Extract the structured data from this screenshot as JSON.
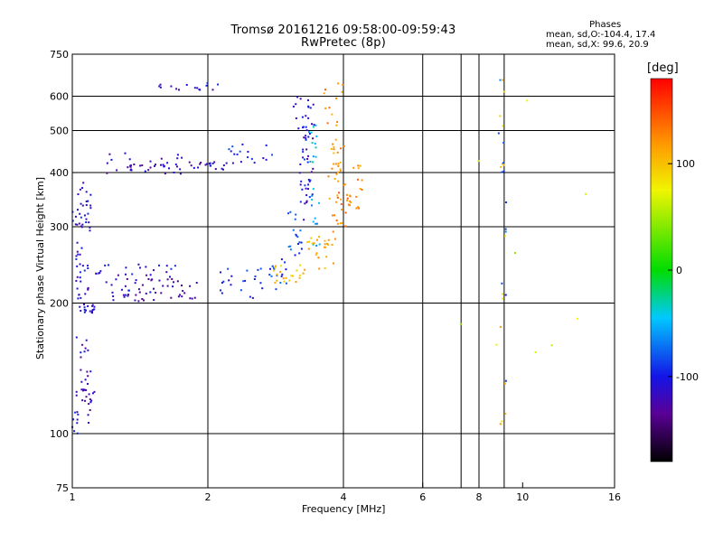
{
  "title": {
    "line1": "Tromsø 20161216 09:58:00-09:59:43",
    "line2": "RwPretec (8p)"
  },
  "stats": {
    "heading": "Phases",
    "line_o": "mean, sd,O:-104.4, 17.4",
    "line_x": "mean, sd,X: 99.6, 20.9"
  },
  "colorbar": {
    "unit_label": "[deg]",
    "min": -180,
    "max": 180,
    "ticks": [
      {
        "value": 100,
        "label": "100"
      },
      {
        "value": 0,
        "label": "0"
      },
      {
        "value": -100,
        "label": "-100"
      }
    ]
  },
  "chart_data": {
    "type": "scatter",
    "xlabel": "Frequency [MHz]",
    "ylabel": "Stationary phase Virtual Height [km]",
    "xscale": "log",
    "yscale": "log",
    "xlim": [
      1,
      16
    ],
    "ylim": [
      75,
      750
    ],
    "grid": true,
    "xticks": [
      {
        "value": 1,
        "label": "1"
      },
      {
        "value": 2,
        "label": "2"
      },
      {
        "value": 4,
        "label": "4"
      },
      {
        "value": 6,
        "label": "6"
      },
      {
        "value": 8,
        "label": "8"
      },
      {
        "value": 10,
        "label": "10"
      },
      {
        "value": 16,
        "label": "16"
      }
    ],
    "yticks": [
      {
        "value": 75,
        "label": "75"
      },
      {
        "value": 100,
        "label": "100"
      },
      {
        "value": 200,
        "label": "200"
      },
      {
        "value": 300,
        "label": "300"
      },
      {
        "value": 400,
        "label": "400"
      },
      {
        "value": 500,
        "label": "500"
      },
      {
        "value": 600,
        "label": "600"
      },
      {
        "value": 750,
        "label": "750"
      }
    ],
    "vgrid": [
      2,
      4,
      6,
      7.3,
      8,
      9.1
    ],
    "hgrid": [
      100,
      200,
      300,
      400,
      500,
      600
    ],
    "color_variable": "phase [deg]",
    "series": [
      {
        "segments": [
          [
            1.05,
            188,
            1.12,
            200,
            -110,
            5
          ],
          [
            1.08,
            208,
            1.8,
            236,
            -125,
            10
          ],
          [
            1.15,
            202,
            2.05,
            212,
            -130,
            6
          ],
          [
            1.05,
            205,
            1.9,
            228,
            -115,
            5
          ],
          [
            1.02,
            232,
            1.7,
            247,
            -105,
            7
          ]
        ]
      },
      {
        "segments": [
          [
            1.02,
            240,
            1.1,
            395,
            -112,
            10
          ],
          [
            1.0,
            300,
            1.06,
            345,
            -108,
            4
          ],
          [
            1.02,
            185,
            1.07,
            240,
            -110,
            5
          ]
        ]
      },
      {
        "segments": [
          [
            1.02,
            105,
            1.1,
            170,
            -115,
            8
          ],
          [
            1.04,
            118,
            1.12,
            127,
            -120,
            4
          ],
          [
            1.0,
            100,
            1.03,
            112,
            -105,
            3
          ]
        ]
      },
      {
        "segments": [
          [
            1.15,
            395,
            1.8,
            445,
            -118,
            8
          ],
          [
            1.25,
            405,
            1.75,
            420,
            -122,
            5
          ]
        ]
      },
      {
        "segments": [
          [
            1.8,
            405,
            2.2,
            425,
            -112,
            6
          ]
        ]
      },
      {
        "segments": [
          [
            2.2,
            420,
            2.9,
            470,
            -98,
            6
          ]
        ]
      },
      {
        "segments": [
          [
            1.55,
            615,
            2.15,
            645,
            -112,
            5
          ]
        ]
      },
      {
        "segments": [
          [
            2.1,
            205,
            2.6,
            240,
            -95,
            6
          ],
          [
            2.6,
            215,
            3.0,
            255,
            -88,
            6
          ],
          [
            3.0,
            240,
            3.25,
            330,
            -82,
            6
          ]
        ]
      },
      {
        "segments": [
          [
            3.2,
            300,
            3.38,
            520,
            -105,
            9
          ],
          [
            3.3,
            330,
            3.45,
            600,
            -110,
            6
          ],
          [
            3.1,
            500,
            3.35,
            640,
            -115,
            4
          ]
        ]
      },
      {
        "segments": [
          [
            3.35,
            420,
            3.5,
            520,
            -40,
            4
          ],
          [
            3.4,
            270,
            3.55,
            380,
            -50,
            4
          ]
        ]
      },
      {
        "segments": [
          [
            2.75,
            222,
            3.3,
            245,
            100,
            7
          ],
          [
            3.3,
            240,
            3.8,
            285,
            112,
            7
          ]
        ]
      },
      {
        "segments": [
          [
            3.7,
            270,
            4.0,
            480,
            118,
            9
          ],
          [
            3.85,
            290,
            4.15,
            470,
            130,
            8
          ],
          [
            4.1,
            330,
            4.4,
            420,
            125,
            5
          ],
          [
            3.6,
            500,
            4.0,
            650,
            125,
            4
          ]
        ]
      },
      {
        "segments": [
          [
            8.9,
            105,
            9.2,
            700,
            100,
            5
          ],
          [
            8.8,
            110,
            9.2,
            690,
            -80,
            4
          ],
          [
            6.5,
            150,
            14.5,
            700,
            60,
            3
          ]
        ]
      }
    ]
  }
}
